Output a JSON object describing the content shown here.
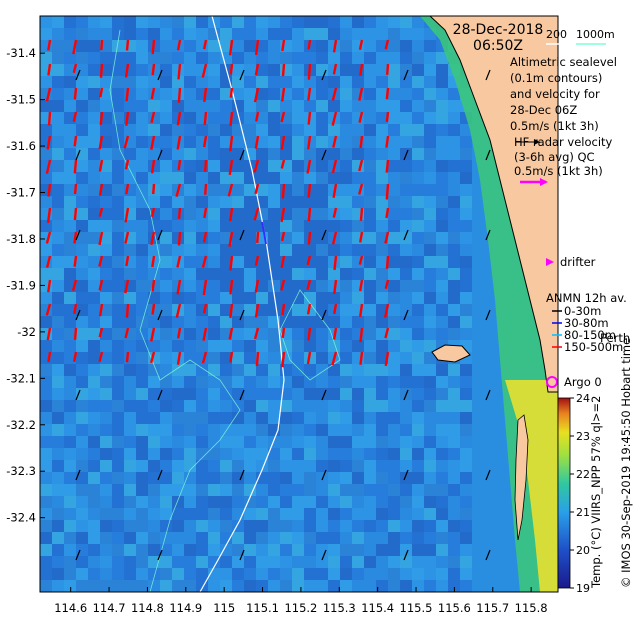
{
  "date": "28-Dec-2018",
  "time": "06:50Z",
  "legend": {
    "isobaths": {
      "label_200": "200",
      "label_1000": "1000m",
      "color": "#7fffd4"
    },
    "altimetry": {
      "line1": "Altimetric sealevel",
      "line2": "(0.1m contours)",
      "line3": "and velocity for",
      "line4": "28-Dec 06Z",
      "scale": "0.5m/s (1kt 3h)"
    },
    "hf_radar": {
      "line1": "HF radar velocity",
      "line2": "(3-6h avg) QC",
      "scale": "0.5m/s (1kt 3h)",
      "arrow_color": "#ff00ff"
    },
    "drifter": {
      "label": "drifter",
      "color": "#ff00ff"
    },
    "anmn": {
      "title": "ANMN 12h av.",
      "items": [
        {
          "label": "0-30m",
          "color": "#000000"
        },
        {
          "label": "30-80m",
          "color": "#0000ff"
        },
        {
          "label": "80-150m",
          "color": "#00c0ff"
        },
        {
          "label": "150-500m",
          "color": "#ff0000"
        }
      ]
    },
    "argo": {
      "label": "Argo 0",
      "color": "#ff00ff"
    }
  },
  "place_labels": {
    "perth": "Perth"
  },
  "colorbar": {
    "label": "Temp. (°C) VIIRS_NPP 57% ql>=2",
    "ticks": [
      "24",
      "23",
      "22",
      "21",
      "20",
      "19"
    ],
    "min": 19,
    "max": 24
  },
  "credit": "© IMOS 30-Sep-2019 19:45:50 Hobart time",
  "axes": {
    "x_ticks": [
      "114.6",
      "114.7",
      "114.8",
      "114.9",
      "115",
      "115.1",
      "115.2",
      "115.3",
      "115.4",
      "115.5",
      "115.6",
      "115.7",
      "115.8"
    ],
    "y_ticks": [
      "-31.4",
      "-31.5",
      "-31.6",
      "-31.7",
      "-31.8",
      "-31.9",
      "-32",
      "-32.1",
      "-32.2",
      "-32.3",
      "-32.4"
    ],
    "lon_range": [
      114.52,
      115.87
    ],
    "lat_range": [
      -32.56,
      -31.32
    ]
  },
  "colors": {
    "land": "#f8c8a0",
    "current_vector": "#ff0000",
    "altimetry_vector": "#000000",
    "sst_low": "#1a1a8c",
    "sst_high": "#e0e020"
  }
}
